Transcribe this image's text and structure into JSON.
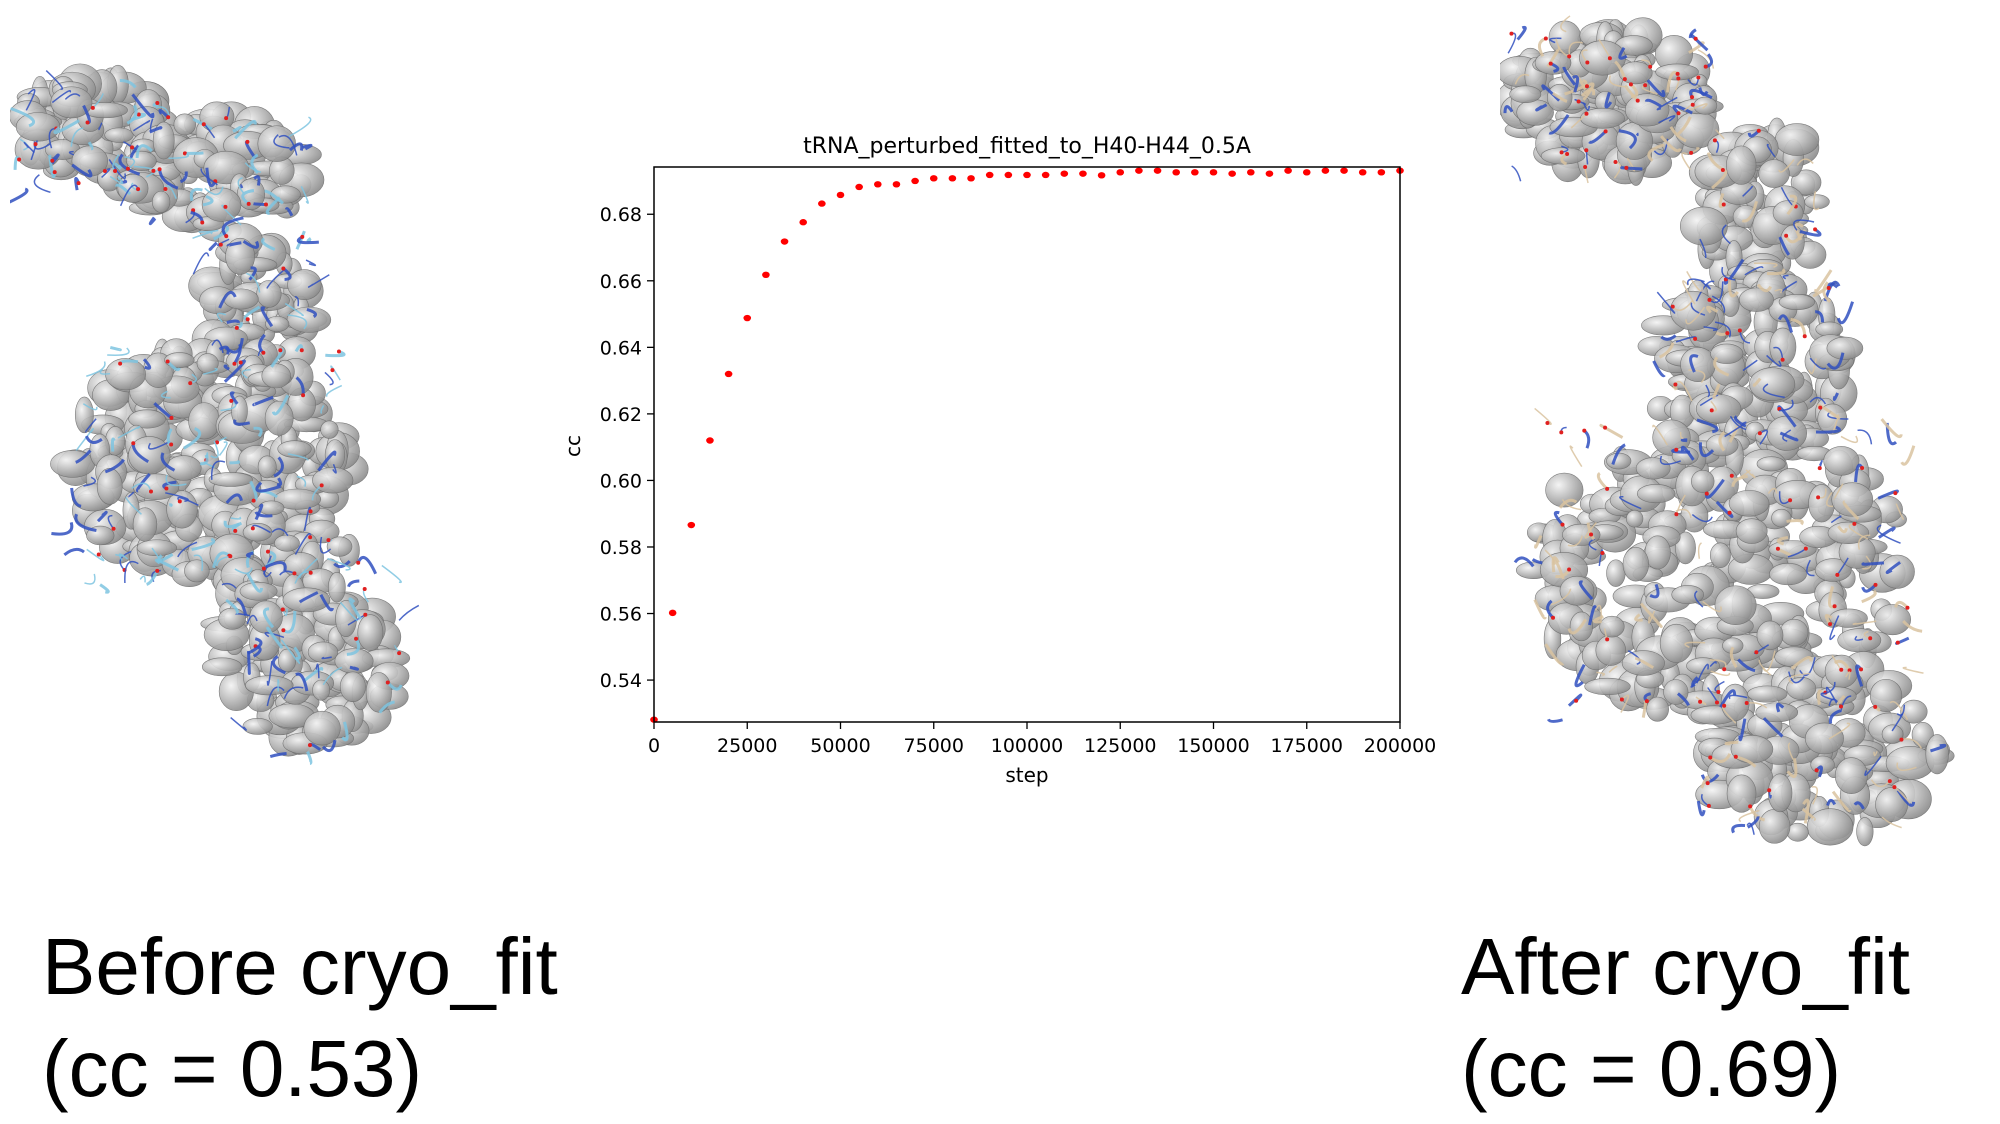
{
  "captions": {
    "before_line1": "Before cryo_fit",
    "before_line2": "(cc = 0.53)",
    "after_line1": "After cryo_fit",
    "after_line2": "(cc = 0.69)"
  },
  "images": {
    "before": {
      "subject": "tRNA model in cryo-EM density map",
      "model_color": "#7ec4e0",
      "density_color": "#b8b8b8"
    },
    "after": {
      "subject": "tRNA model fitted in cryo-EM density map",
      "model_color": "#d9c3a0",
      "density_color": "#b8b8b8"
    }
  },
  "chart_data": {
    "type": "scatter",
    "title": "tRNA_perturbed_fitted_to_H40-H44_0.5A",
    "xlabel": "step",
    "ylabel": "cc",
    "xlim": [
      0,
      200000
    ],
    "ylim": [
      0.5274,
      0.6942
    ],
    "xticks": [
      "0",
      "25000",
      "50000",
      "75000",
      "100000",
      "125000",
      "150000",
      "175000",
      "200000"
    ],
    "yticks": [
      "0.54",
      "0.56",
      "0.58",
      "0.60",
      "0.62",
      "0.64",
      "0.66",
      "0.68"
    ],
    "grid": false,
    "marker_color": "#ff0000",
    "x": [
      0,
      5000,
      10000,
      15000,
      20000,
      25000,
      30000,
      35000,
      40000,
      45000,
      50000,
      55000,
      60000,
      65000,
      70000,
      75000,
      80000,
      85000,
      90000,
      95000,
      100000,
      105000,
      110000,
      115000,
      120000,
      125000,
      130000,
      135000,
      140000,
      145000,
      150000,
      155000,
      160000,
      165000,
      170000,
      175000,
      180000,
      185000,
      190000,
      195000,
      200000
    ],
    "y": [
      0.5281,
      0.5602,
      0.5866,
      0.612,
      0.632,
      0.6488,
      0.6618,
      0.6718,
      0.6776,
      0.6832,
      0.6858,
      0.6882,
      0.689,
      0.689,
      0.69,
      0.6908,
      0.6908,
      0.6908,
      0.6918,
      0.6918,
      0.6918,
      0.6918,
      0.6922,
      0.6922,
      0.6917,
      0.6926,
      0.6931,
      0.6931,
      0.6926,
      0.6926,
      0.6926,
      0.6922,
      0.6926,
      0.6922,
      0.6931,
      0.6926,
      0.6931,
      0.6931,
      0.6926,
      0.6926,
      0.6931
    ]
  }
}
